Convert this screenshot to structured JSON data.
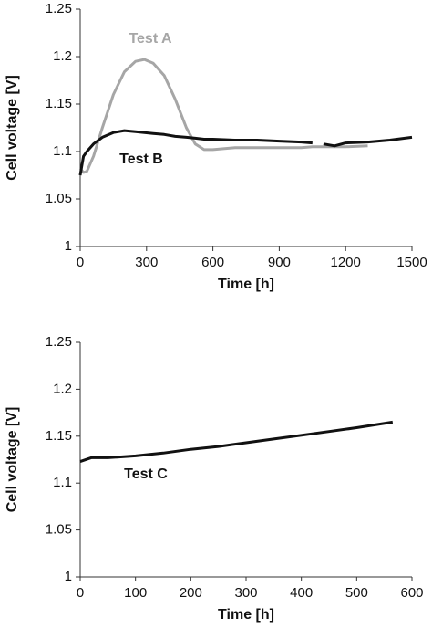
{
  "chart_data": [
    {
      "type": "line",
      "xlabel": "Time [h]",
      "ylabel": "Cell voltage [V]",
      "x": [
        0,
        15,
        30,
        60,
        100,
        150,
        200,
        250,
        290,
        330,
        380,
        430,
        480,
        520,
        560,
        600,
        700,
        800,
        900,
        1000,
        1050,
        1075,
        1100,
        1150,
        1200,
        1300,
        1400,
        1500
      ],
      "series": [
        {
          "name": "Test A",
          "color": "#a6a6a6",
          "values": [
            1.082,
            1.078,
            1.079,
            1.095,
            1.125,
            1.16,
            1.184,
            1.195,
            1.197,
            1.193,
            1.18,
            1.155,
            1.125,
            1.108,
            1.102,
            1.102,
            1.104,
            1.104,
            1.104,
            1.104,
            1.105,
            1.105,
            1.105,
            1.105,
            1.105,
            1.106,
            null,
            null
          ]
        },
        {
          "name": "Test B",
          "color": "#111111",
          "values": [
            1.075,
            1.095,
            1.1,
            1.108,
            1.115,
            1.12,
            1.122,
            1.121,
            1.12,
            1.119,
            1.118,
            1.116,
            1.115,
            1.114,
            1.113,
            1.113,
            1.112,
            1.112,
            1.111,
            1.11,
            1.109,
            null,
            1.108,
            1.106,
            1.109,
            1.11,
            1.112,
            1.115
          ]
        }
      ],
      "xlim": [
        0,
        1500
      ],
      "xticks": [
        0,
        300,
        600,
        900,
        1200,
        1500
      ],
      "ylim": [
        1,
        1.25
      ],
      "yticks": [
        1,
        1.05,
        1.1,
        1.15,
        1.2,
        1.25
      ],
      "grid": false
    },
    {
      "type": "line",
      "xlabel": "Time [h]",
      "ylabel": "Cell voltage [V]",
      "x": [
        0,
        20,
        50,
        100,
        150,
        200,
        250,
        300,
        350,
        400,
        450,
        500,
        565
      ],
      "series": [
        {
          "name": "Test C",
          "color": "#111111",
          "values": [
            1.123,
            1.127,
            1.127,
            1.129,
            1.132,
            1.136,
            1.139,
            1.143,
            1.147,
            1.151,
            1.155,
            1.159,
            1.165
          ]
        }
      ],
      "xlim": [
        0,
        600
      ],
      "xticks": [
        0,
        100,
        200,
        300,
        400,
        500,
        600
      ],
      "ylim": [
        1,
        1.25
      ],
      "yticks": [
        1,
        1.05,
        1.1,
        1.15,
        1.2,
        1.25
      ],
      "grid": false
    }
  ]
}
